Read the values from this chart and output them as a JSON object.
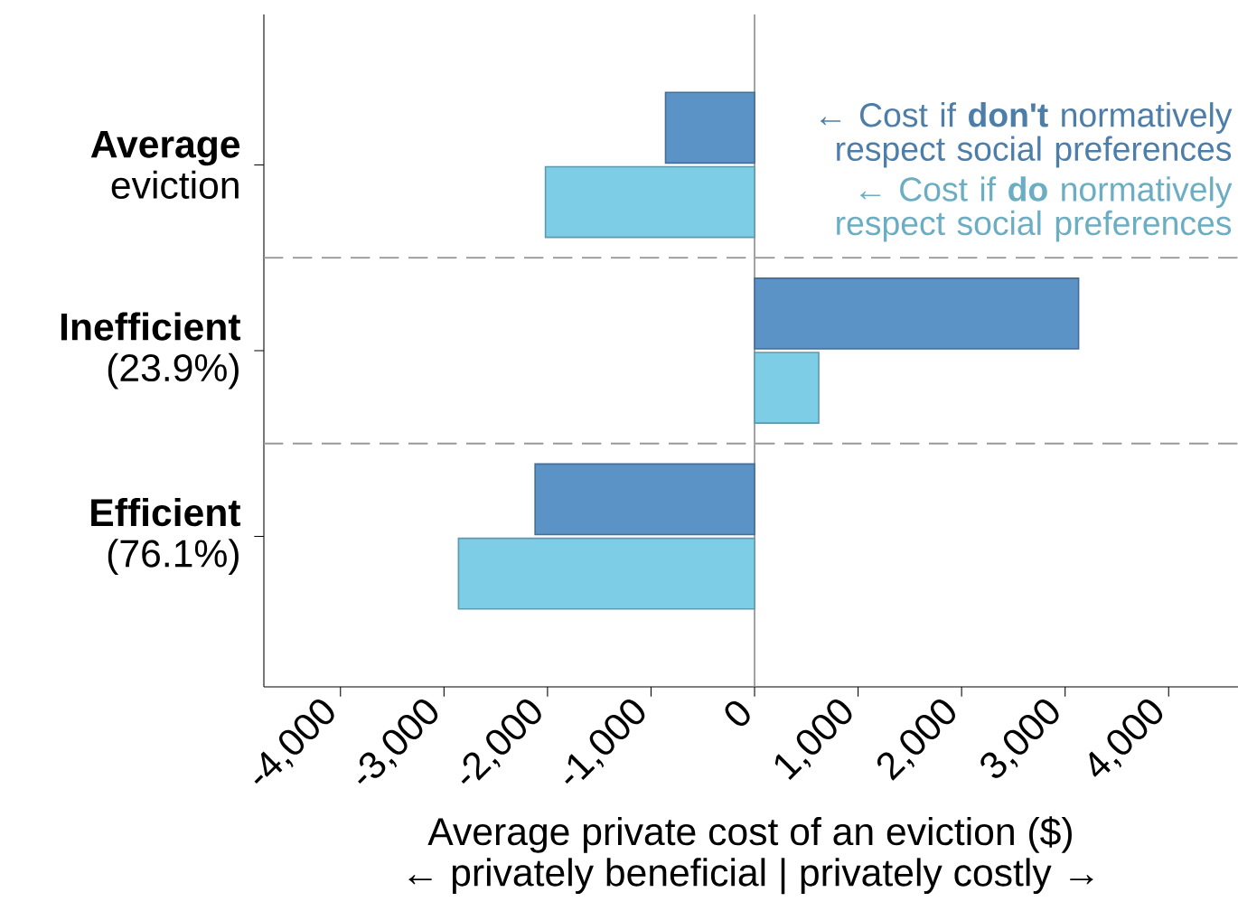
{
  "chart_data": {
    "type": "bar",
    "orientation": "horizontal",
    "categories": [
      "**Average** eviction",
      "**Inefficient** (23.9%)",
      "**Efficient** (76.1%)"
    ],
    "series": [
      {
        "name": "← Cost if **don't** normatively respect social preferences",
        "color": "#5b93c7",
        "values": [
          -860,
          3130,
          -2120
        ]
      },
      {
        "name": "← Cost if **do** normatively respect social preferences",
        "color": "#7ecde6",
        "values": [
          -2020,
          620,
          -2860
        ]
      }
    ],
    "xlabel": "Average private cost of an eviction ($)",
    "annotations": [
      "← privately beneficial | privately costly →"
    ],
    "xlim": [
      -4740,
      4670
    ],
    "xticks": [
      {
        "value": -4000,
        "label": "-4,000"
      },
      {
        "value": -3000,
        "label": "-3,000"
      },
      {
        "value": -2000,
        "label": "-2,000"
      },
      {
        "value": -1000,
        "label": "-1,000"
      },
      0,
      {
        "value": 1000,
        "label": "1,000"
      },
      {
        "value": 2000,
        "label": "2,000"
      },
      {
        "value": 3000,
        "label": "3,000"
      },
      {
        "value": 4000,
        "label": "4,000"
      }
    ],
    "ref_lines": [
      {
        "axis": "x",
        "value": 0,
        "color": "#8c8c8c",
        "line_style": "solid"
      }
    ],
    "grid": false,
    "legend": false
  }
}
